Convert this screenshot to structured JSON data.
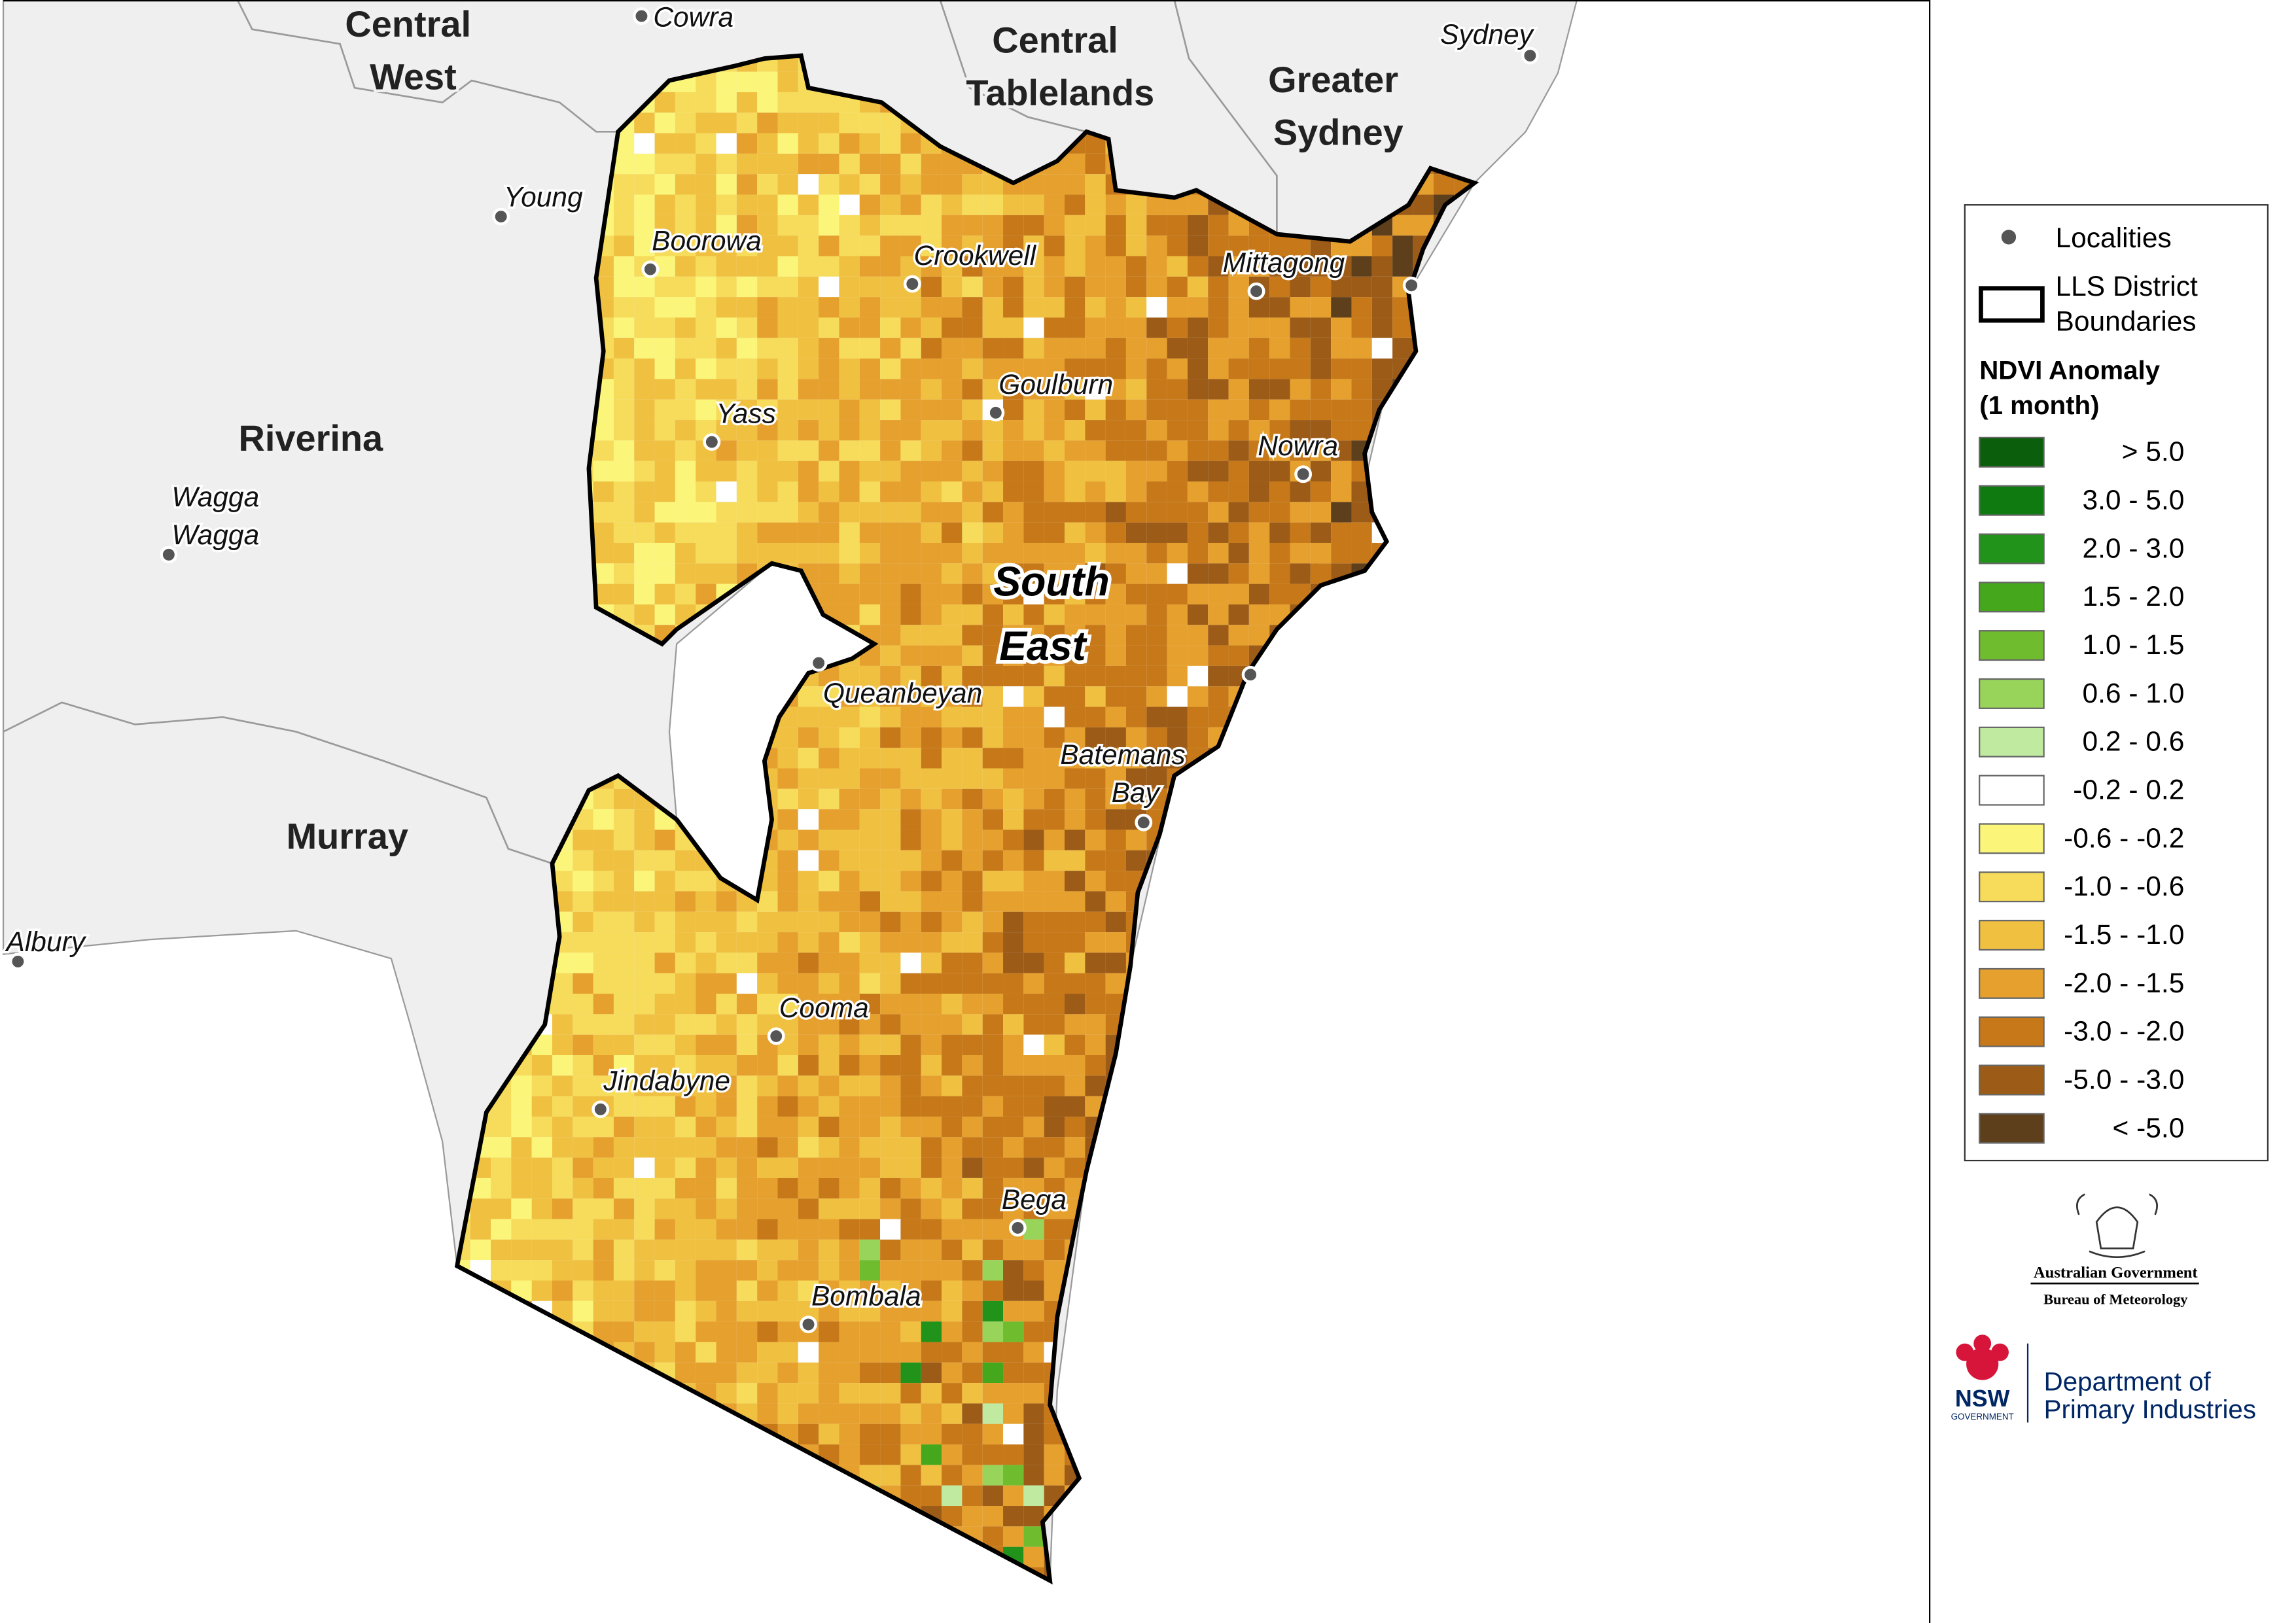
{
  "regions": [
    "Central West",
    "Central Tablelands",
    "Greater Sydney",
    "Riverina",
    "Murray",
    "South East"
  ],
  "localities": [
    "Cowra",
    "Sydney",
    "Young",
    "Wagga Wagga",
    "Albury",
    "Boorowa",
    "Crookwell",
    "Mittagong",
    "Goulburn",
    "Yass",
    "Nowra",
    "Queanbeyan",
    "Batemans Bay",
    "Cooma",
    "Jindabyne",
    "Bega",
    "Bombala"
  ],
  "legend": {
    "localities": "Localities",
    "boundaries": "LLS District Boundaries",
    "title": "NDVI Anomaly (1 month)",
    "items": [
      {
        "label": ">  5.0",
        "color": "#0b5e0b"
      },
      {
        "label": "3.0 -  5.0",
        "color": "#0f7a0f"
      },
      {
        "label": "2.0 -  3.0",
        "color": "#22931a"
      },
      {
        "label": "1.5 -  2.0",
        "color": "#45a81c"
      },
      {
        "label": "1.0 -  1.5",
        "color": "#6fbd2f"
      },
      {
        "label": "0.6 -  1.0",
        "color": "#98d45a"
      },
      {
        "label": "0.2 -  0.6",
        "color": "#bfeaa0"
      },
      {
        "label": "-0.2 -  0.2",
        "color": "#ffffff"
      },
      {
        "label": "-0.6 - -0.2",
        "color": "#fbf57a"
      },
      {
        "label": "-1.0 - -0.6",
        "color": "#f6dc5a"
      },
      {
        "label": "-1.5 - -1.0",
        "color": "#f0c040"
      },
      {
        "label": "-2.0 - -1.5",
        "color": "#e6a02e"
      },
      {
        "label": "-3.0 - -2.0",
        "color": "#c7791a"
      },
      {
        "label": "-5.0 - -3.0",
        "color": "#9c5c18"
      },
      {
        "label": "< -5.0",
        "color": "#5e3f1c"
      }
    ]
  },
  "logos": {
    "australian_government": "Australian Government",
    "bureau": "Bureau of Meteorology",
    "nsw": "NSW",
    "nsw_government": "GOVERNMENT",
    "department": "Department of Primary Industries"
  }
}
